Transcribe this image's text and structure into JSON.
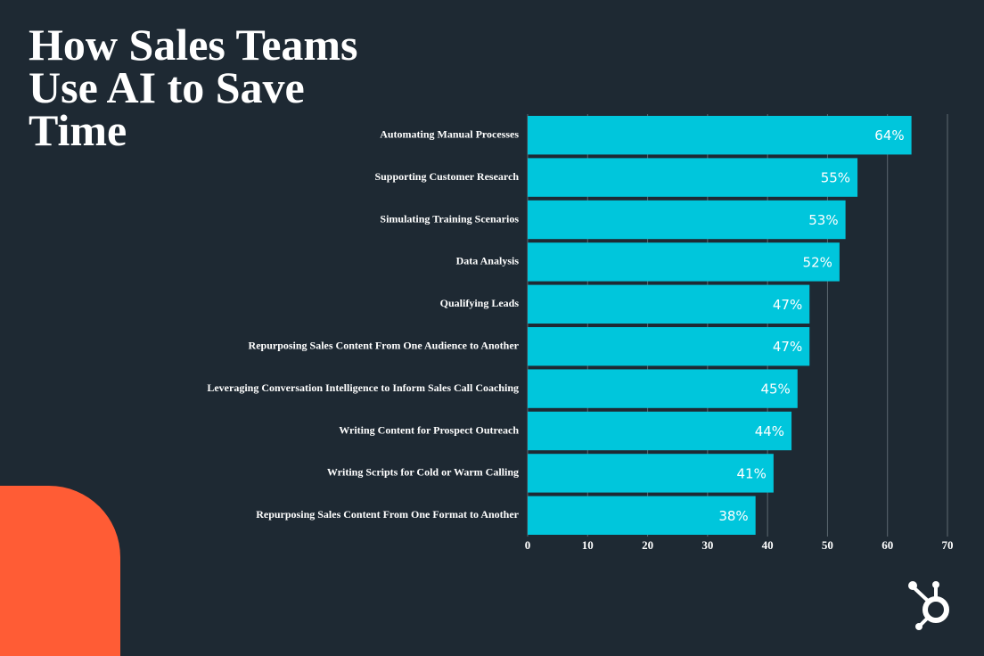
{
  "chart_data": {
    "type": "bar",
    "orientation": "horizontal",
    "title": "How Sales Teams Use AI to Save Time",
    "categories": [
      "Automating Manual Processes",
      "Supporting Customer Research",
      "Simulating Training Scenarios",
      "Data Analysis",
      "Qualifying Leads",
      "Repurposing Sales Content From One Audience to Another",
      "Leveraging Conversation Intelligence to Inform Sales Call Coaching",
      "Writing Content for Prospect Outreach",
      "Writing Scripts for Cold or Warm Calling",
      "Repurposing Sales Content From One Format to Another"
    ],
    "values": [
      64,
      55,
      53,
      52,
      47,
      47,
      45,
      44,
      41,
      38
    ],
    "value_labels": [
      "64%",
      "55%",
      "53%",
      "52%",
      "47%",
      "47%",
      "45%",
      "44%",
      "41%",
      "38%"
    ],
    "color": "#00c6dc",
    "xlim": [
      0,
      70
    ],
    "xticks": [
      0,
      10,
      20,
      30,
      40,
      50,
      60,
      70
    ],
    "grid": true
  }
}
